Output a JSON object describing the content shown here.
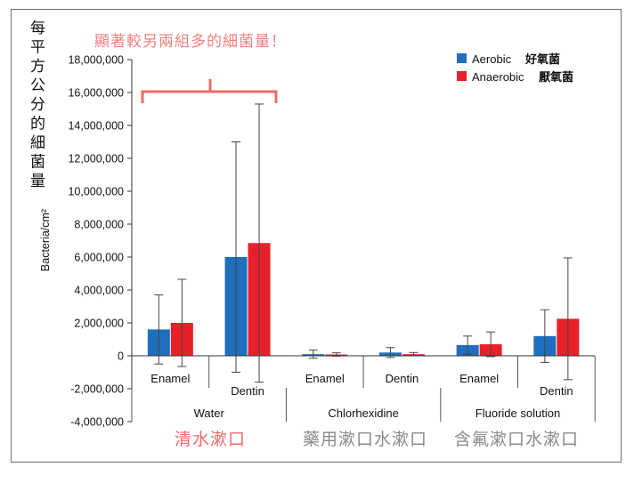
{
  "chart_data": {
    "type": "bar",
    "ylabel": "Bacteria/cm²",
    "ylim": [
      -4000000,
      18000000
    ],
    "yticks": [
      -4000000,
      -2000000,
      0,
      2000000,
      4000000,
      6000000,
      8000000,
      10000000,
      12000000,
      14000000,
      16000000,
      18000000
    ],
    "ytick_labels": [
      "-4,000,000",
      "-2,000,000",
      "0",
      "2,000,000",
      "4,000,000",
      "6,000,000",
      "8,000,000",
      "10,000,000",
      "12,000,000",
      "14,000,000",
      "16,000,000",
      "18,000,000"
    ],
    "groups": [
      {
        "name": "Water",
        "categories": [
          "Enamel",
          "Dentin"
        ]
      },
      {
        "name": "Chlorhexidine",
        "categories": [
          "Enamel",
          "Dentin"
        ]
      },
      {
        "name": "Fluoride solution",
        "categories": [
          "Enamel",
          "Dentin"
        ]
      }
    ],
    "categories": [
      "Enamel",
      "Dentin",
      "Enamel",
      "Dentin",
      "Enamel",
      "Dentin"
    ],
    "series": [
      {
        "name": "Aerobic",
        "name_zh": "好氧菌",
        "color": "#1f6fbe",
        "values": [
          1600000,
          6000000,
          100000,
          200000,
          650000,
          1200000
        ],
        "errors": [
          2100000,
          7000000,
          250000,
          300000,
          550000,
          1600000
        ]
      },
      {
        "name": "Anaerobic",
        "name_zh": "厭氧菌",
        "color": "#e8202a",
        "values": [
          2000000,
          6850000,
          80000,
          100000,
          700000,
          2250000
        ],
        "errors": [
          2650000,
          8450000,
          100000,
          100000,
          750000,
          3700000
        ]
      }
    ]
  },
  "annotations": {
    "side_label_chars": [
      "每",
      "平",
      "方",
      "公",
      "分",
      "的",
      "細",
      "菌",
      "量"
    ],
    "highlight_note": "顯著較另兩組多的細菌量！",
    "bottom_labels": [
      "清水漱口",
      "藥用漱口水漱口",
      "含氟漱口水漱口"
    ]
  },
  "colors": {
    "aerobic": "#1f6fbe",
    "anaerobic": "#e8202a",
    "highlight": "#f06a6a",
    "muted": "#8a8a8a"
  }
}
